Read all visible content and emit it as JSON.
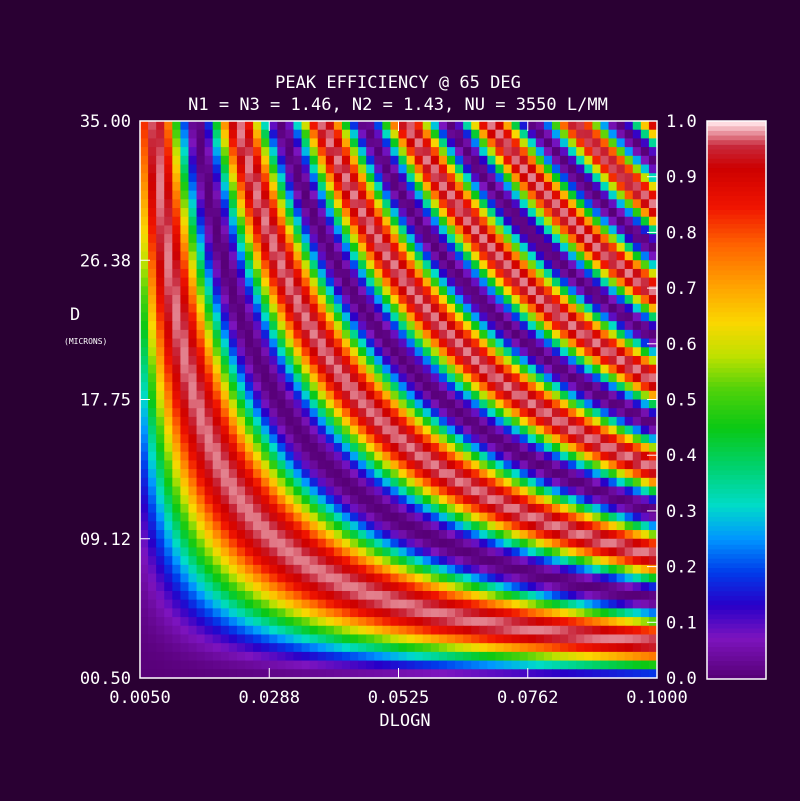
{
  "chart_data": {
    "type": "heatmap",
    "title": "PEAK EFFICIENCY @ 65 DEG",
    "subtitle": "N1 = N3 = 1.46, N2 = 1.43, NU = 3550 L/MM",
    "xlabel": "DLOGN",
    "ylabel": "D",
    "yunit": "(MICRONS)",
    "xlim": [
      0.005,
      0.1
    ],
    "ylim": [
      0.5,
      35.0
    ],
    "x_ticks": [
      "0.0050",
      "0.0288",
      "0.0525",
      "0.0762",
      "0.1000"
    ],
    "y_ticks": [
      "00.50",
      "09.12",
      "17.75",
      "26.38",
      "35.00"
    ],
    "colorbar_ticks": [
      "0.0",
      "0.1",
      "0.2",
      "0.3",
      "0.4",
      "0.5",
      "0.6",
      "0.7",
      "0.8",
      "0.9",
      "1.0"
    ],
    "value_range": [
      0.0,
      1.0
    ],
    "grid_resolution": [
      64,
      64
    ],
    "colormap": "rainbow (violet-blue-cyan-green-yellow-orange-red-pink)"
  },
  "colors": {
    "background": "#2a0033",
    "frame": "#ffffff",
    "text": "#ffffff"
  }
}
